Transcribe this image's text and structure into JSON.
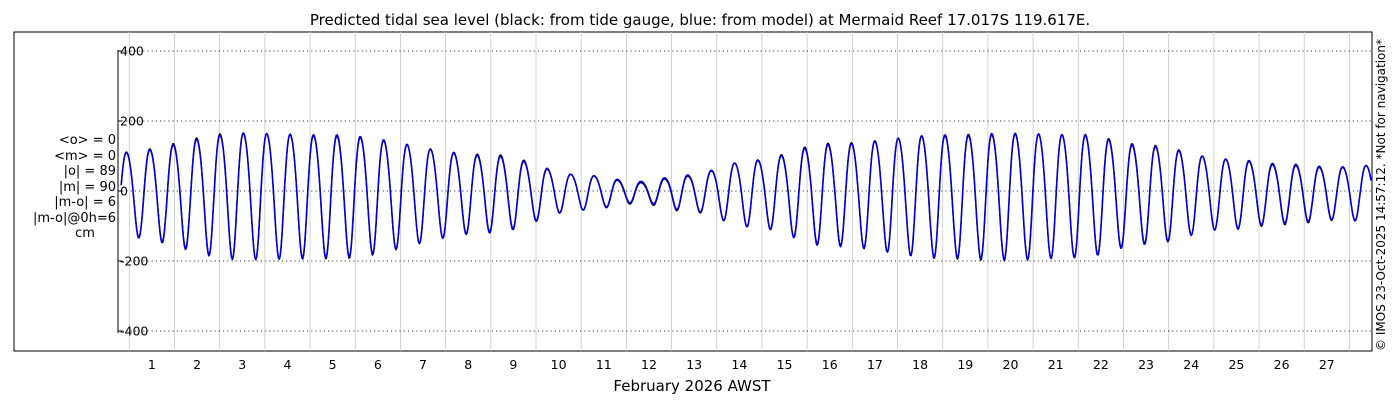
{
  "chart_data": {
    "type": "line",
    "title": "Predicted tidal sea level (black: from tide gauge, blue: from model) at Mermaid Reef 17.017S 119.617E.",
    "xlabel": "February 2026 AWST",
    "ylabel": "",
    "xlim": [
      0.25,
      28.0
    ],
    "ylim": [
      -420,
      420
    ],
    "y_ticks": [
      400,
      200,
      0,
      -200,
      -400
    ],
    "y_tick_labels": [
      "400",
      "200",
      "0",
      "-200",
      "-400"
    ],
    "x_ticks": [
      1,
      2,
      3,
      4,
      5,
      6,
      7,
      8,
      9,
      10,
      11,
      12,
      13,
      14,
      15,
      16,
      17,
      18,
      19,
      20,
      21,
      22,
      23,
      24,
      25,
      26,
      27
    ],
    "x_tick_labels": [
      "1",
      "2",
      "3",
      "4",
      "5",
      "6",
      "7",
      "8",
      "9",
      "10",
      "11",
      "12",
      "13",
      "14",
      "15",
      "16",
      "17",
      "18",
      "19",
      "20",
      "21",
      "22",
      "23",
      "24",
      "25",
      "26",
      "27"
    ],
    "y_grid": "dotted",
    "x_grid": "vertical",
    "series": [
      {
        "name": "tide gauge",
        "color": "#000000",
        "description": "semidiurnal tide, spring-neap modulated"
      },
      {
        "name": "model",
        "color": "#0000e0",
        "description": "semidiurnal tide, spring-neap modulated"
      }
    ],
    "envelope": {
      "days": [
        0.3,
        3.0,
        5.0,
        8.5,
        10.5,
        11.8,
        12.8,
        14.3,
        16.0,
        18.5,
        20.0,
        21.5,
        23.0,
        24.8,
        26.0,
        27.2,
        28.0
      ],
      "amplitude_cm": [
        120,
        180,
        175,
        110,
        50,
        30,
        50,
        95,
        145,
        175,
        180,
        175,
        140,
        100,
        85,
        75,
        80
      ]
    },
    "source_note": "© IMOS 23-Oct-2025 14:57:12. *Not for navigation*"
  },
  "stats": {
    "mean_obs": "<o> = 0",
    "mean_model": "<m> = 0",
    "abs_obs": "|o| = 89",
    "abs_model": "|m| = 90",
    "abs_diff": "|m-o| = 6",
    "abs_diff_0h": "|m-o|@0h=6",
    "unit": "cm"
  }
}
